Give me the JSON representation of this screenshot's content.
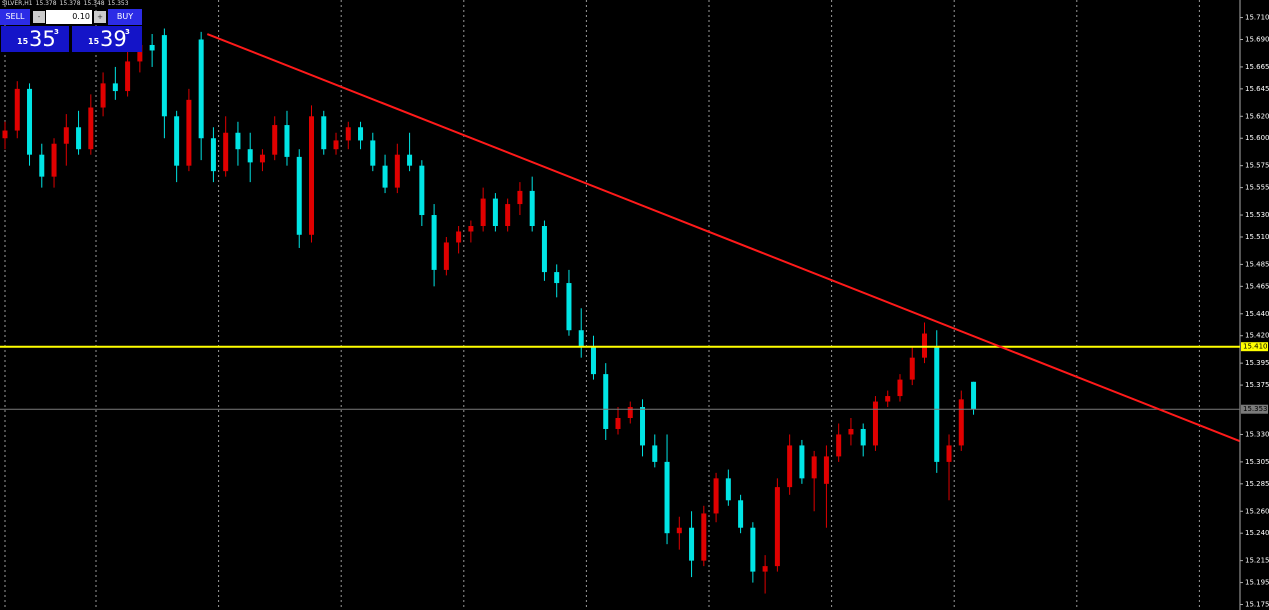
{
  "header": {
    "symbol": "SILVER,H1"
  },
  "trade_panel": {
    "sell_label": "SELL",
    "buy_label": "BUY",
    "minus": "-",
    "plus": "+",
    "lot": "0.10",
    "sell": {
      "prefix": "15",
      "big": "35",
      "sup": "3"
    },
    "buy": {
      "prefix": "15",
      "big": "39",
      "sup": "3"
    }
  },
  "chart_data": {
    "type": "candlestick",
    "up_color": "#e00000",
    "down_color": "#00e5e5",
    "ylim": [
      15.17,
      15.726
    ],
    "yticks": [
      {
        "value": 15.71,
        "label": "15.710"
      },
      {
        "value": 15.69,
        "label": "15.690"
      },
      {
        "value": 15.665,
        "label": "15.665"
      },
      {
        "value": 15.645,
        "label": "15.645"
      },
      {
        "value": 15.62,
        "label": "15.620"
      },
      {
        "value": 15.6,
        "label": "15.600"
      },
      {
        "value": 15.575,
        "label": "15.575"
      },
      {
        "value": 15.555,
        "label": "15.555"
      },
      {
        "value": 15.53,
        "label": "15.530"
      },
      {
        "value": 15.51,
        "label": "15.510"
      },
      {
        "value": 15.485,
        "label": "15.485"
      },
      {
        "value": 15.465,
        "label": "15.465"
      },
      {
        "value": 15.44,
        "label": "15.440"
      },
      {
        "value": 15.42,
        "label": "15.420"
      },
      {
        "value": 15.395,
        "label": "15.395"
      },
      {
        "value": 15.375,
        "label": "15.375"
      },
      {
        "value": 15.33,
        "label": "15.330"
      },
      {
        "value": 15.305,
        "label": "15.305"
      },
      {
        "value": 15.285,
        "label": "15.285"
      },
      {
        "value": 15.26,
        "label": "15.260"
      },
      {
        "value": 15.24,
        "label": "15.240"
      },
      {
        "value": 15.215,
        "label": "15.215"
      },
      {
        "value": 15.195,
        "label": "15.195"
      },
      {
        "value": 15.175,
        "label": "15.175"
      }
    ],
    "open": [
      15.6,
      15.607,
      15.645,
      15.585,
      15.565,
      15.595,
      15.61,
      15.59,
      15.628,
      15.65,
      15.643,
      15.67,
      15.685,
      15.694,
      15.62,
      15.575,
      15.69,
      15.6,
      15.57,
      15.605,
      15.59,
      15.578,
      15.585,
      15.612,
      15.583,
      15.512,
      15.62,
      15.59,
      15.598,
      15.61,
      15.598,
      15.575,
      15.555,
      15.585,
      15.575,
      15.53,
      15.48,
      15.505,
      15.515,
      15.52,
      15.545,
      15.52,
      15.54,
      15.552,
      15.52,
      15.478,
      15.468,
      15.425,
      15.41,
      15.385,
      15.335,
      15.345,
      15.355,
      15.32,
      15.305,
      15.24,
      15.245,
      15.215,
      15.258,
      15.29,
      15.27,
      15.245,
      15.205,
      15.21,
      15.282,
      15.32,
      15.29,
      15.285,
      15.31,
      15.33,
      15.335,
      15.32,
      15.36,
      15.365,
      15.38,
      15.4,
      15.41,
      15.305,
      15.32,
      15.378
    ],
    "high": [
      15.615,
      15.652,
      15.65,
      15.595,
      15.6,
      15.622,
      15.625,
      15.64,
      15.66,
      15.665,
      15.68,
      15.695,
      15.695,
      15.7,
      15.625,
      15.645,
      15.697,
      15.61,
      15.62,
      15.615,
      15.605,
      15.59,
      15.62,
      15.625,
      15.59,
      15.63,
      15.625,
      15.605,
      15.615,
      15.615,
      15.605,
      15.585,
      15.595,
      15.605,
      15.58,
      15.54,
      15.51,
      15.52,
      15.525,
      15.555,
      15.55,
      15.545,
      15.56,
      15.565,
      15.525,
      15.485,
      15.48,
      15.445,
      15.42,
      15.395,
      15.355,
      15.36,
      15.362,
      15.33,
      15.33,
      15.255,
      15.26,
      15.265,
      15.295,
      15.298,
      15.275,
      15.25,
      15.22,
      15.29,
      15.33,
      15.325,
      15.315,
      15.32,
      15.34,
      15.345,
      15.34,
      15.365,
      15.37,
      15.385,
      15.41,
      15.432,
      15.425,
      15.33,
      15.37,
      15.378
    ],
    "low": [
      15.59,
      15.6,
      15.575,
      15.555,
      15.555,
      15.575,
      15.585,
      15.585,
      15.62,
      15.635,
      15.638,
      15.66,
      15.665,
      15.6,
      15.56,
      15.57,
      15.58,
      15.56,
      15.565,
      15.575,
      15.56,
      15.57,
      15.58,
      15.575,
      15.5,
      15.505,
      15.585,
      15.585,
      15.59,
      15.59,
      15.57,
      15.55,
      15.55,
      15.57,
      15.52,
      15.465,
      15.475,
      15.495,
      15.505,
      15.515,
      15.515,
      15.515,
      15.53,
      15.515,
      15.47,
      15.455,
      15.42,
      15.4,
      15.38,
      15.325,
      15.33,
      15.34,
      15.31,
      15.3,
      15.23,
      15.225,
      15.2,
      15.21,
      15.25,
      15.265,
      15.24,
      15.195,
      15.185,
      15.205,
      15.275,
      15.285,
      15.26,
      15.245,
      15.305,
      15.32,
      15.31,
      15.315,
      15.355,
      15.36,
      15.375,
      15.395,
      15.295,
      15.27,
      15.315,
      15.348
    ],
    "close": [
      15.607,
      15.645,
      15.585,
      15.565,
      15.595,
      15.61,
      15.59,
      15.628,
      15.65,
      15.643,
      15.67,
      15.685,
      15.68,
      15.62,
      15.575,
      15.635,
      15.6,
      15.57,
      15.605,
      15.59,
      15.578,
      15.585,
      15.612,
      15.583,
      15.512,
      15.62,
      15.59,
      15.598,
      15.61,
      15.598,
      15.575,
      15.555,
      15.585,
      15.575,
      15.53,
      15.48,
      15.505,
      15.515,
      15.52,
      15.545,
      15.52,
      15.54,
      15.552,
      15.52,
      15.478,
      15.468,
      15.425,
      15.41,
      15.385,
      15.335,
      15.345,
      15.355,
      15.32,
      15.305,
      15.24,
      15.245,
      15.215,
      15.258,
      15.29,
      15.27,
      15.245,
      15.205,
      15.21,
      15.282,
      15.32,
      15.29,
      15.31,
      15.31,
      15.33,
      15.335,
      15.32,
      15.36,
      15.365,
      15.38,
      15.4,
      15.422,
      15.305,
      15.32,
      15.362,
      15.353
    ],
    "levels": [
      {
        "value": 15.41,
        "label": "15.410",
        "color": "#ffff00"
      },
      {
        "value": 15.353,
        "label": "15.353",
        "color": "#7a7a7a"
      }
    ],
    "trendline": {
      "color": "#ff1a1a",
      "start": {
        "index": 16.5,
        "price": 15.695
      },
      "end": {
        "index": 100.7,
        "price": 15.324
      }
    }
  }
}
